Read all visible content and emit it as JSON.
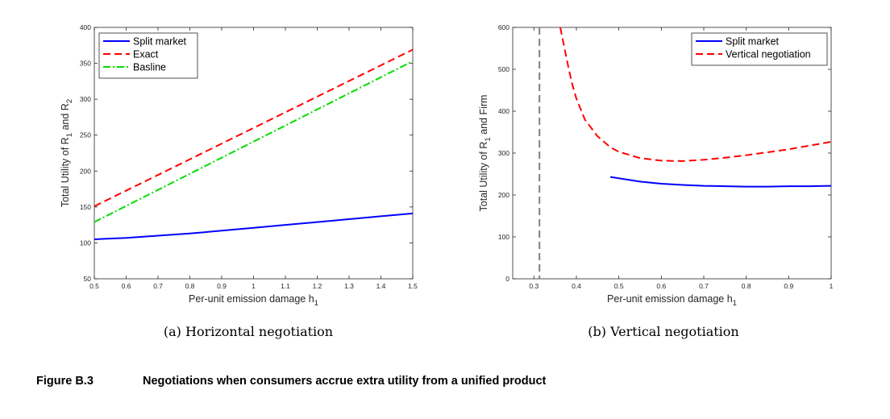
{
  "figure": {
    "label": "Figure B.3",
    "caption": "Negotiations when consumers accrue extra utility from a unified product"
  },
  "chart_data": [
    {
      "type": "line",
      "caption": "(a) Horizontal negotiation",
      "xlabel": "Per-unit emission damage h",
      "xlabel_sub": "1",
      "ylabel_parts": [
        "Total Utility of R",
        "1",
        " and R",
        "2"
      ],
      "xlim": [
        0.5,
        1.5
      ],
      "ylim": [
        50,
        400
      ],
      "xticks": [
        0.5,
        0.6,
        0.7,
        0.8,
        0.9,
        1,
        1.1,
        1.2,
        1.3,
        1.4,
        1.5
      ],
      "yticks": [
        50,
        100,
        150,
        200,
        250,
        300,
        350,
        400
      ],
      "grid": false,
      "legend_position": "top-left",
      "series": [
        {
          "name": "Split market",
          "color": "#0000ff",
          "style": "solid",
          "x": [
            0.5,
            0.6,
            0.7,
            0.8,
            0.9,
            1.0,
            1.1,
            1.2,
            1.3,
            1.4,
            1.5
          ],
          "y": [
            105,
            107,
            110,
            113,
            117,
            121,
            125,
            129,
            133,
            137,
            141
          ]
        },
        {
          "name": "Exact",
          "color": "#ff0000",
          "style": "dashed",
          "x": [
            0.5,
            1.5
          ],
          "y": [
            151,
            369
          ]
        },
        {
          "name": "Basline",
          "color": "#00dd00",
          "style": "dashdot",
          "x": [
            0.5,
            1.5
          ],
          "y": [
            129,
            353
          ]
        }
      ]
    },
    {
      "type": "line",
      "caption": "(b) Vertical negotiation",
      "xlabel": "Per-unit emission damage h",
      "xlabel_sub": "1",
      "ylabel_parts": [
        "Total Utility of R",
        "1",
        " and Firm"
      ],
      "xlim": [
        0.25,
        1
      ],
      "ylim": [
        0,
        600
      ],
      "xticks": [
        0.3,
        0.4,
        0.5,
        0.6,
        0.7,
        0.8,
        0.9,
        1
      ],
      "yticks": [
        0,
        100,
        200,
        300,
        400,
        500,
        600
      ],
      "grid": false,
      "legend_position": "top-right",
      "vline": {
        "x": 0.313,
        "color": "#808080",
        "style": "dashed"
      },
      "series": [
        {
          "name": "Split market",
          "color": "#0000ff",
          "style": "solid",
          "x": [
            0.48,
            0.55,
            0.6,
            0.65,
            0.7,
            0.75,
            0.8,
            0.85,
            0.9,
            0.95,
            1.0
          ],
          "y": [
            243,
            232,
            227,
            224,
            222,
            221,
            220,
            220,
            221,
            221,
            222
          ]
        },
        {
          "name": "Vertical negotiation",
          "color": "#ff0000",
          "style": "dashed",
          "x": [
            0.362,
            0.37,
            0.38,
            0.39,
            0.4,
            0.42,
            0.45,
            0.48,
            0.5,
            0.55,
            0.6,
            0.65,
            0.7,
            0.75,
            0.8,
            0.85,
            0.9,
            0.95,
            1.0
          ],
          "y": [
            600,
            560,
            510,
            465,
            430,
            380,
            340,
            314,
            303,
            288,
            282,
            281,
            284,
            289,
            295,
            302,
            309,
            318,
            327
          ]
        }
      ]
    }
  ]
}
